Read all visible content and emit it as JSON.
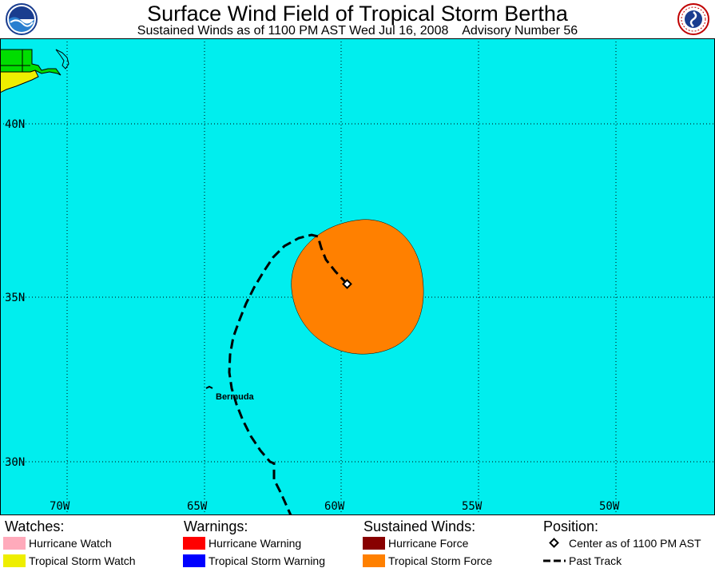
{
  "header": {
    "title": "Surface Wind Field of Tropical Storm Bertha",
    "subtitle": "Sustained Winds as of 1100 PM AST Wed Jul 16, 2008    Advisory Number 56"
  },
  "logos": {
    "left_icon": "noaa-logo",
    "right_icon": "nws-logo"
  },
  "colors": {
    "ocean": "#00eeee",
    "land": "#00dd00",
    "tropical_storm_force": "#ff8000",
    "hurricane_force": "#880000",
    "hurricane_watch": "#ffaabb",
    "tropical_storm_watch": "#eeee00",
    "hurricane_warning": "#ff0000",
    "tropical_storm_warning": "#0000ff"
  },
  "map": {
    "lon_labels": [
      "70W",
      "65W",
      "60W",
      "55W",
      "50W"
    ],
    "lat_labels": [
      "40N",
      "35N",
      "30N"
    ],
    "place_label": "Bermuda",
    "storm_center": {
      "lat": 35.4,
      "lon": -59.6
    }
  },
  "legend": {
    "watches": {
      "heading": "Watches:",
      "items": [
        "Hurricane Watch",
        "Tropical Storm Watch"
      ]
    },
    "warnings": {
      "heading": "Warnings:",
      "items": [
        "Hurricane Warning",
        "Tropical Storm Warning"
      ]
    },
    "winds": {
      "heading": "Sustained Winds:",
      "items": [
        "Hurricane Force",
        "Tropical Storm Force"
      ]
    },
    "position": {
      "heading": "Position:",
      "items": [
        "Center as of 1100 PM AST",
        "Past Track"
      ]
    }
  }
}
